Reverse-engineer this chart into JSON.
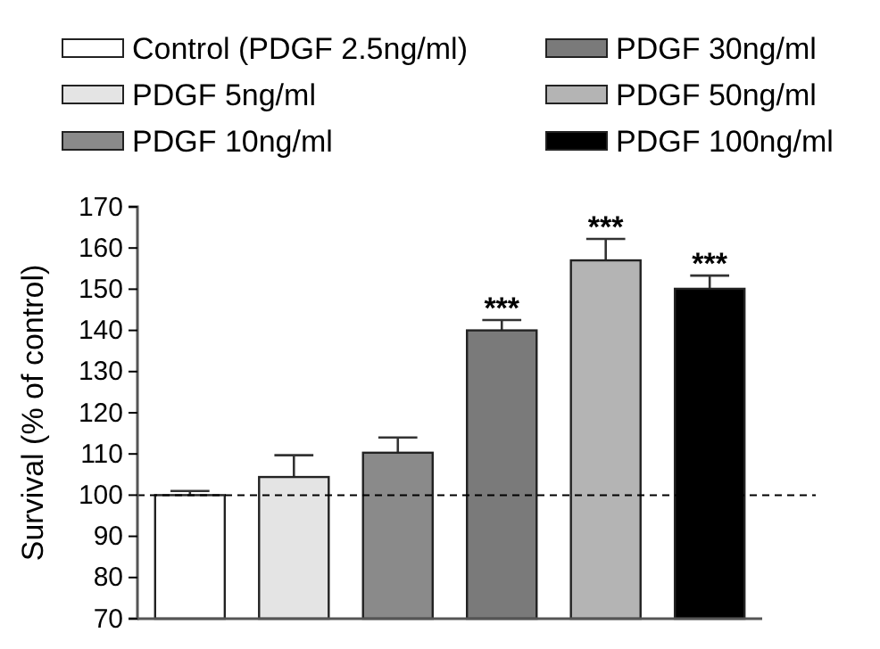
{
  "chart_data": {
    "type": "bar",
    "ylabel": "Survival (% of control)",
    "categories": [
      null,
      null,
      null,
      null,
      null,
      null
    ],
    "series": [
      {
        "name": "Control (PDGF 2.5ng/ml)",
        "color": "#ffffff",
        "values": [
          100,
          null,
          null,
          null,
          null,
          null
        ],
        "errors": [
          1,
          null,
          null,
          null,
          null,
          null
        ]
      },
      {
        "name": "PDGF 5ng/ml",
        "color": "#e4e4e4",
        "values": [
          null,
          104.4,
          null,
          null,
          null,
          null
        ],
        "errors": [
          null,
          5.3,
          null,
          null,
          null,
          null
        ]
      },
      {
        "name": "PDGF 10ng/ml",
        "color": "#8a8a8a",
        "values": [
          null,
          null,
          110.3,
          null,
          null,
          null
        ],
        "errors": [
          null,
          null,
          3.7,
          null,
          null,
          null
        ]
      },
      {
        "name": "PDGF 30ng/ml",
        "color": "#7a7a7a",
        "values": [
          null,
          null,
          null,
          140,
          null,
          null
        ],
        "errors": [
          null,
          null,
          null,
          2.5,
          null,
          null
        ]
      },
      {
        "name": "PDGF 50ng/ml",
        "color": "#b4b4b4",
        "values": [
          null,
          null,
          null,
          null,
          157,
          null
        ],
        "errors": [
          null,
          null,
          null,
          null,
          5.2,
          null
        ]
      },
      {
        "name": "PDGF 100ng/ml",
        "color": "#000000",
        "values": [
          null,
          null,
          null,
          null,
          null,
          150.1
        ],
        "errors": [
          null,
          null,
          null,
          null,
          null,
          3.2
        ]
      }
    ],
    "ylim": [
      70,
      170
    ],
    "yticks": [
      70,
      80,
      90,
      100,
      110,
      120,
      130,
      140,
      150,
      160,
      170
    ],
    "grid": false,
    "legend": "top",
    "ref_lines": [
      {
        "axis": "y",
        "value": 100,
        "line_style": "dashed",
        "color": "#000000"
      }
    ],
    "annotations": [
      {
        "text": "***",
        "y": 142.5
      },
      {
        "text": "***",
        "y": 162.2
      },
      {
        "text": "***",
        "y": 153.3
      }
    ]
  }
}
